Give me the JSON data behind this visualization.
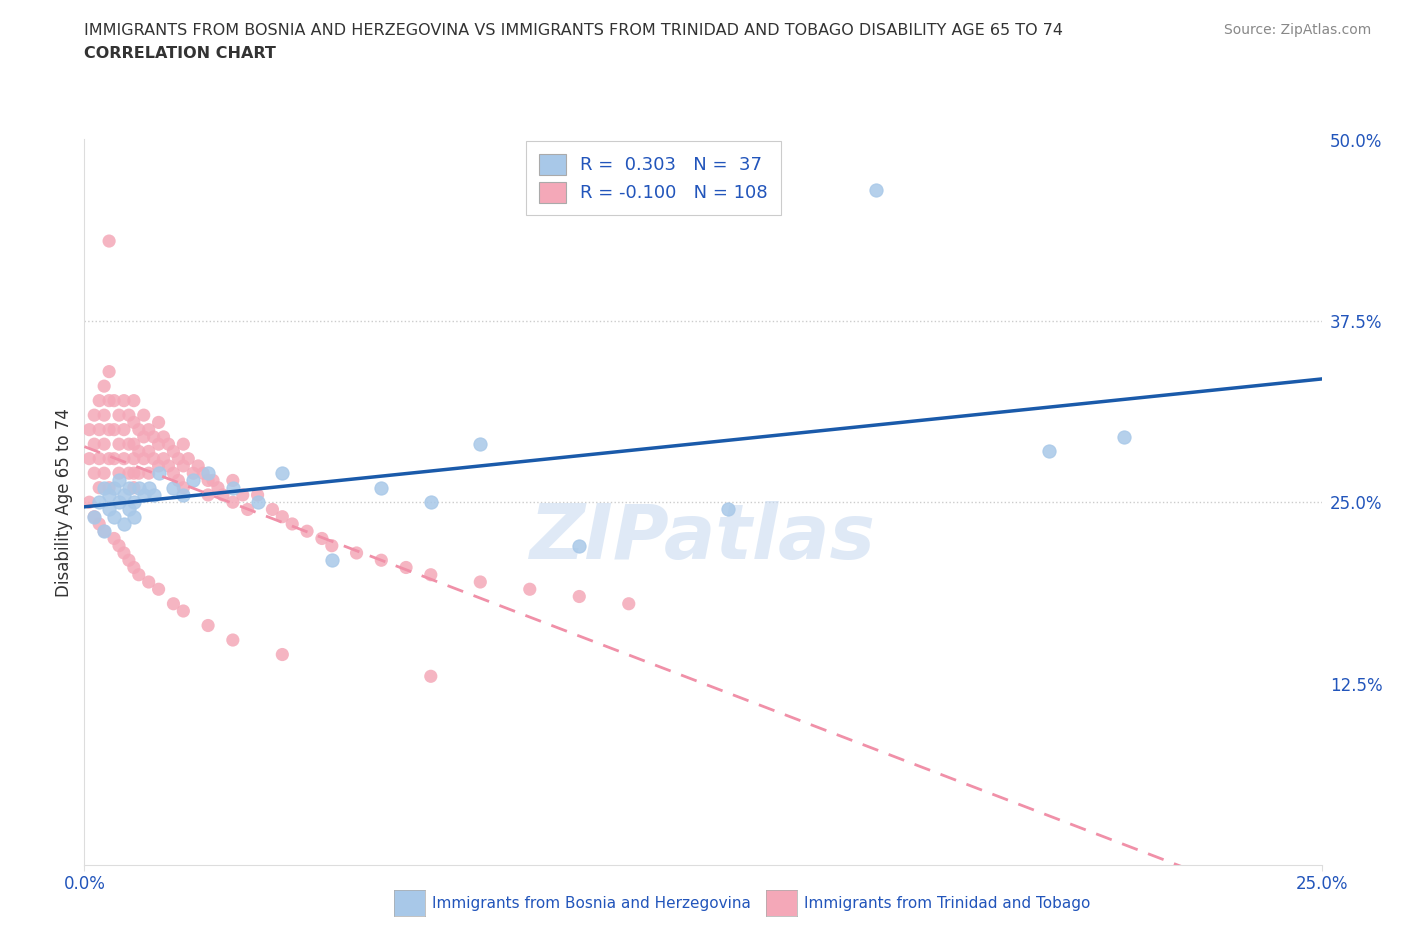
{
  "title_line1": "IMMIGRANTS FROM BOSNIA AND HERZEGOVINA VS IMMIGRANTS FROM TRINIDAD AND TOBAGO DISABILITY AGE 65 TO 74",
  "title_line2": "CORRELATION CHART",
  "source_text": "Source: ZipAtlas.com",
  "ylabel": "Disability Age 65 to 74",
  "xlim": [
    0.0,
    0.25
  ],
  "ylim": [
    0.0,
    0.5
  ],
  "xtick_positions": [
    0.0,
    0.25
  ],
  "xtick_labels": [
    "0.0%",
    "25.0%"
  ],
  "ytick_vals_right": [
    0.125,
    0.25,
    0.375,
    0.5
  ],
  "ytick_labels_right": [
    "12.5%",
    "25.0%",
    "37.5%",
    "50.0%"
  ],
  "color_bosnia": "#a8c8e8",
  "color_trinidad": "#f4a8b8",
  "color_line_bosnia": "#1a5aaa",
  "color_line_trinidad": "#f090a8",
  "R_bosnia": 0.303,
  "N_bosnia": 37,
  "R_trinidad": -0.1,
  "N_trinidad": 108,
  "legend_label_bosnia": "Immigrants from Bosnia and Herzegovina",
  "legend_label_trinidad": "Immigrants from Trinidad and Tobago",
  "watermark": "ZIPatlas",
  "bosnia_x": [
    0.002,
    0.003,
    0.004,
    0.004,
    0.005,
    0.005,
    0.006,
    0.006,
    0.007,
    0.007,
    0.008,
    0.008,
    0.009,
    0.009,
    0.01,
    0.01,
    0.011,
    0.012,
    0.013,
    0.014,
    0.015,
    0.018,
    0.02,
    0.022,
    0.025,
    0.03,
    0.035,
    0.04,
    0.05,
    0.06,
    0.07,
    0.08,
    0.1,
    0.13,
    0.16,
    0.195,
    0.21
  ],
  "bosnia_y": [
    0.24,
    0.25,
    0.26,
    0.23,
    0.255,
    0.245,
    0.26,
    0.24,
    0.25,
    0.265,
    0.255,
    0.235,
    0.26,
    0.245,
    0.25,
    0.24,
    0.26,
    0.255,
    0.26,
    0.255,
    0.27,
    0.26,
    0.255,
    0.265,
    0.27,
    0.26,
    0.25,
    0.27,
    0.21,
    0.26,
    0.25,
    0.29,
    0.22,
    0.245,
    0.465,
    0.285,
    0.295
  ],
  "trinidad_x": [
    0.001,
    0.001,
    0.002,
    0.002,
    0.002,
    0.003,
    0.003,
    0.003,
    0.003,
    0.004,
    0.004,
    0.004,
    0.004,
    0.005,
    0.005,
    0.005,
    0.005,
    0.005,
    0.005,
    0.006,
    0.006,
    0.006,
    0.007,
    0.007,
    0.007,
    0.008,
    0.008,
    0.008,
    0.009,
    0.009,
    0.009,
    0.01,
    0.01,
    0.01,
    0.01,
    0.01,
    0.01,
    0.011,
    0.011,
    0.011,
    0.012,
    0.012,
    0.012,
    0.013,
    0.013,
    0.013,
    0.014,
    0.014,
    0.015,
    0.015,
    0.015,
    0.016,
    0.016,
    0.017,
    0.017,
    0.018,
    0.018,
    0.019,
    0.019,
    0.02,
    0.02,
    0.02,
    0.021,
    0.022,
    0.023,
    0.024,
    0.025,
    0.025,
    0.026,
    0.027,
    0.028,
    0.03,
    0.03,
    0.032,
    0.033,
    0.035,
    0.038,
    0.04,
    0.042,
    0.045,
    0.048,
    0.05,
    0.055,
    0.06,
    0.065,
    0.07,
    0.08,
    0.09,
    0.1,
    0.11,
    0.001,
    0.002,
    0.003,
    0.004,
    0.006,
    0.007,
    0.008,
    0.009,
    0.01,
    0.011,
    0.013,
    0.015,
    0.018,
    0.02,
    0.025,
    0.03,
    0.04,
    0.07
  ],
  "trinidad_y": [
    0.28,
    0.3,
    0.31,
    0.29,
    0.27,
    0.32,
    0.3,
    0.28,
    0.26,
    0.33,
    0.31,
    0.29,
    0.27,
    0.43,
    0.34,
    0.32,
    0.3,
    0.28,
    0.26,
    0.32,
    0.3,
    0.28,
    0.31,
    0.29,
    0.27,
    0.32,
    0.3,
    0.28,
    0.31,
    0.29,
    0.27,
    0.32,
    0.305,
    0.29,
    0.28,
    0.27,
    0.26,
    0.3,
    0.285,
    0.27,
    0.31,
    0.295,
    0.28,
    0.3,
    0.285,
    0.27,
    0.295,
    0.28,
    0.305,
    0.29,
    0.275,
    0.295,
    0.28,
    0.29,
    0.275,
    0.285,
    0.27,
    0.28,
    0.265,
    0.29,
    0.275,
    0.26,
    0.28,
    0.27,
    0.275,
    0.27,
    0.265,
    0.255,
    0.265,
    0.26,
    0.255,
    0.265,
    0.25,
    0.255,
    0.245,
    0.255,
    0.245,
    0.24,
    0.235,
    0.23,
    0.225,
    0.22,
    0.215,
    0.21,
    0.205,
    0.2,
    0.195,
    0.19,
    0.185,
    0.18,
    0.25,
    0.24,
    0.235,
    0.23,
    0.225,
    0.22,
    0.215,
    0.21,
    0.205,
    0.2,
    0.195,
    0.19,
    0.18,
    0.175,
    0.165,
    0.155,
    0.145,
    0.13
  ]
}
